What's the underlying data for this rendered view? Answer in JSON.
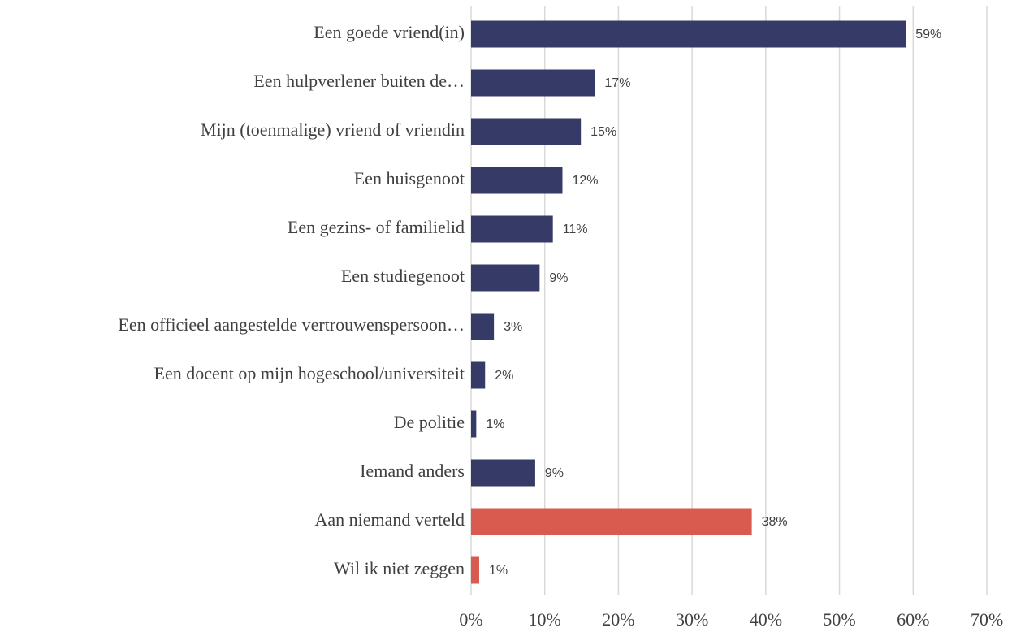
{
  "chart_data": {
    "type": "barh",
    "categories": [
      "Een goede vriend(in)",
      "Een hulpverlener buiten de…",
      "Mijn (toenmalige) vriend of vriendin",
      "Een huisgenoot",
      "Een gezins- of familielid",
      "Een studiegenoot",
      "Een officieel aangestelde vertrouwenspersoon…",
      "Een docent op mijn hogeschool/universiteit",
      "De politie",
      "Iemand anders",
      "Aan niemand verteld",
      "Wil ik niet zeggen"
    ],
    "values": [
      59.0,
      16.8,
      14.9,
      12.4,
      11.1,
      9.3,
      3.1,
      1.9,
      0.7,
      8.7,
      38.1,
      1.1
    ],
    "value_labels": [
      "59%",
      "17%",
      "15%",
      "12%",
      "11%",
      "9%",
      "3%",
      "2%",
      "1%",
      "9%",
      "38%",
      "1%"
    ],
    "colors": [
      "#363a66",
      "#363a66",
      "#363a66",
      "#363a66",
      "#363a66",
      "#363a66",
      "#363a66",
      "#363a66",
      "#363a66",
      "#363a66",
      "#d95b4f",
      "#d95b4f"
    ],
    "xlim": [
      0,
      70
    ],
    "xticks": [
      {
        "value": 0,
        "label": "0%"
      },
      {
        "value": 10,
        "label": "10%"
      },
      {
        "value": 20,
        "label": "20%"
      },
      {
        "value": 30,
        "label": "30%"
      },
      {
        "value": 40,
        "label": "40%"
      },
      {
        "value": 50,
        "label": "50%"
      },
      {
        "value": 60,
        "label": "60%"
      },
      {
        "value": 70,
        "label": "70%"
      }
    ],
    "grid": true
  }
}
